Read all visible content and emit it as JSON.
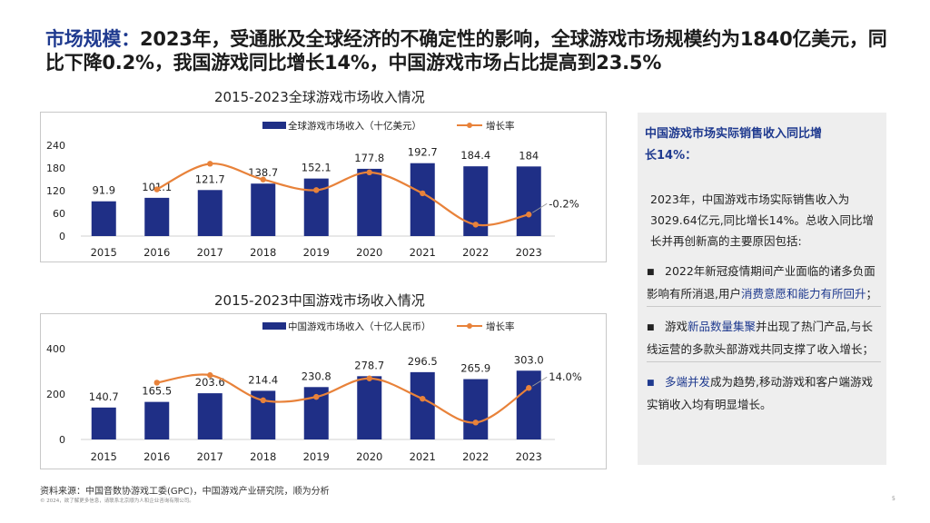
{
  "headline": {
    "label": "市场规模：",
    "text": "2023年，受通胀及全球经济的不确定性的影响，全球游戏市场规模约为1840亿美元，同比下降0.2%，我国游戏同比增长14%，中国游戏市场占比提高到23.5%"
  },
  "chart_data": [
    {
      "type": "bar",
      "title": "2015-2023全球游戏市场收入情况",
      "categories": [
        "2015",
        "2016",
        "2017",
        "2018",
        "2019",
        "2020",
        "2021",
        "2022",
        "2023"
      ],
      "series": [
        {
          "name": "全球游戏市场收入（十亿美元）",
          "type": "bar",
          "values": [
            91.9,
            101.1,
            121.7,
            138.7,
            152.1,
            177.8,
            192.7,
            184.4,
            184
          ],
          "labels": [
            "91.9",
            "101.1",
            "121.7",
            "138.7",
            "152.1",
            "177.8",
            "192.7",
            "184.4",
            "184"
          ]
        },
        {
          "name": "增长率",
          "type": "line",
          "values": [
            null,
            10.0,
            20.4,
            14.0,
            9.7,
            16.9,
            8.4,
            -4.3,
            -0.2
          ],
          "annotation": "-0.2%"
        }
      ],
      "ylim": [
        0,
        240
      ],
      "yticks": [
        "0",
        "60",
        "120",
        "180",
        "240"
      ],
      "colors": {
        "bar": "#1f2f86",
        "line": "#e8823a"
      }
    },
    {
      "type": "bar",
      "title": "2015-2023中国游戏市场收入情况",
      "categories": [
        "2015",
        "2016",
        "2017",
        "2018",
        "2019",
        "2020",
        "2021",
        "2022",
        "2023"
      ],
      "series": [
        {
          "name": "中国游戏市场收入（十亿人民币）",
          "type": "bar",
          "values": [
            140.7,
            165.5,
            203.6,
            214.4,
            230.8,
            278.7,
            296.5,
            265.9,
            303.0
          ],
          "labels": [
            "140.7",
            "165.5",
            "203.6",
            "214.4",
            "230.8",
            "278.7",
            "296.5",
            "265.9",
            "303.0"
          ]
        },
        {
          "name": "增长率",
          "type": "line",
          "values": [
            null,
            17.7,
            23.0,
            5.3,
            7.7,
            20.7,
            6.4,
            -10.3,
            14.0
          ],
          "annotation": "14.0%"
        }
      ],
      "ylim": [
        0,
        400
      ],
      "yticks": [
        "0",
        "200",
        "400"
      ],
      "colors": {
        "bar": "#1f2f86",
        "line": "#e8823a"
      }
    }
  ],
  "side": {
    "title": "中国游戏市场实际销售收入同比增长14%：",
    "intro": "2023年，中国游戏市场实际销售收入为3029.64亿元,同比增长14%。总收入同比增长并再创新高的主要原因包括:",
    "b1_pre": "2022年新冠疫情期间产业面临的诸多负面影响有所消退,用户",
    "b1_hl": "消费意愿和能力有所回升",
    "b1_post": "；",
    "b2_pre": "游戏",
    "b2_hl": "新品数量集聚",
    "b2_post": "并出现了热门产品,与长线运营的多款头部游戏共同支撑了收入增长；",
    "b3_hl": "多端并发",
    "b3_post": "成为趋势,移动游戏和客户端游戏实销收入均有明显增长。",
    "bullet_glyph": "■"
  },
  "source": "资料来源：中国音数协游戏工委(GPC)，中国游戏产业研究院，顺为分析",
  "copyright": "© 2024，欲了解更多信息，请联系北京顺为人和企业咨询有限公司。",
  "page_number": "5"
}
